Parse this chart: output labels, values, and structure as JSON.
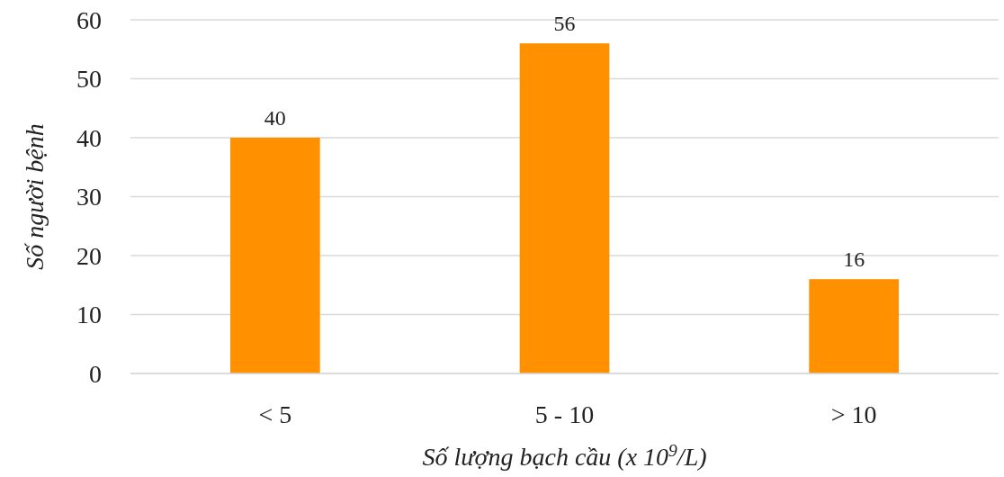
{
  "chart_data": {
    "type": "bar",
    "xlabel": "Số lượng bạch cầu (x 10$^{9}$/L)",
    "ylabel": "Số người bệnh",
    "categories": [
      "< 5",
      "5 - 10",
      "> 10"
    ],
    "values": [
      40,
      56,
      16
    ],
    "color": "#ff9000",
    "ylim": [
      0,
      60
    ],
    "yticks": [
      0,
      10,
      20,
      30,
      40,
      50,
      60
    ],
    "grid": "y",
    "data_labels": true
  }
}
